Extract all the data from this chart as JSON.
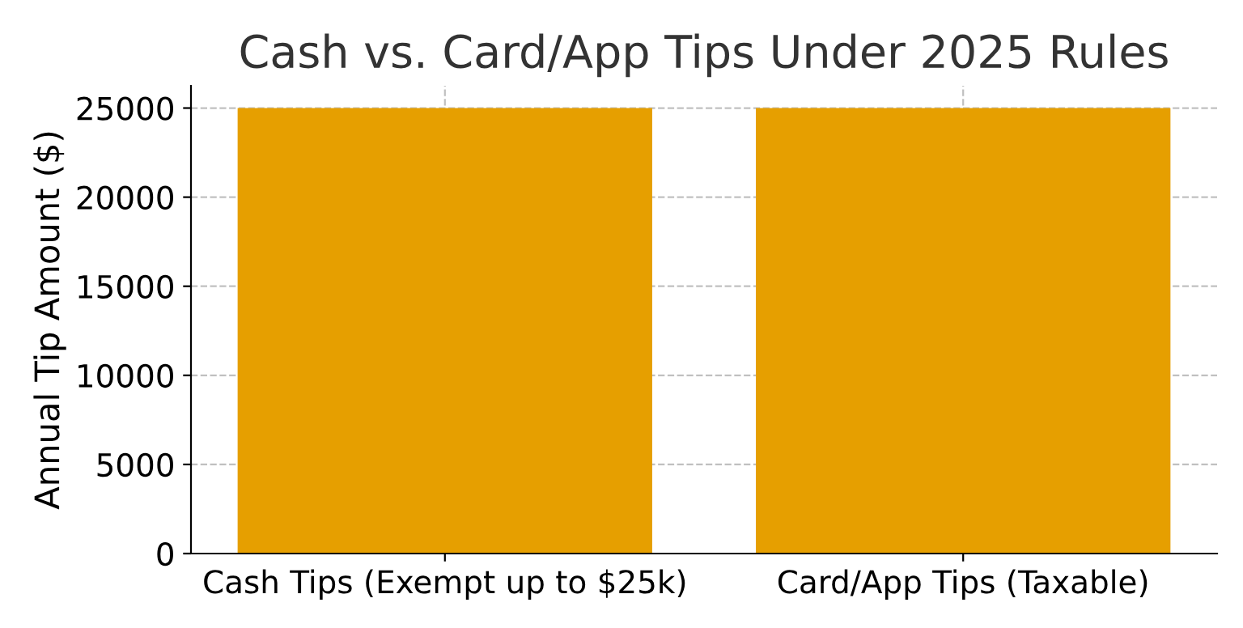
{
  "chart_data": {
    "type": "bar",
    "title": "Cash vs. Card/App Tips Under 2025 Rules",
    "ylabel": "Annual Tip Amount ($)",
    "categories": [
      "Cash Tips (Exempt up to $25k)",
      "Card/App Tips (Taxable)"
    ],
    "values": [
      25000,
      25000
    ],
    "color": "#e69f00",
    "ylim": [
      0,
      26250
    ],
    "yticks": [
      0,
      5000,
      10000,
      15000,
      20000,
      25000
    ],
    "grid": true
  }
}
